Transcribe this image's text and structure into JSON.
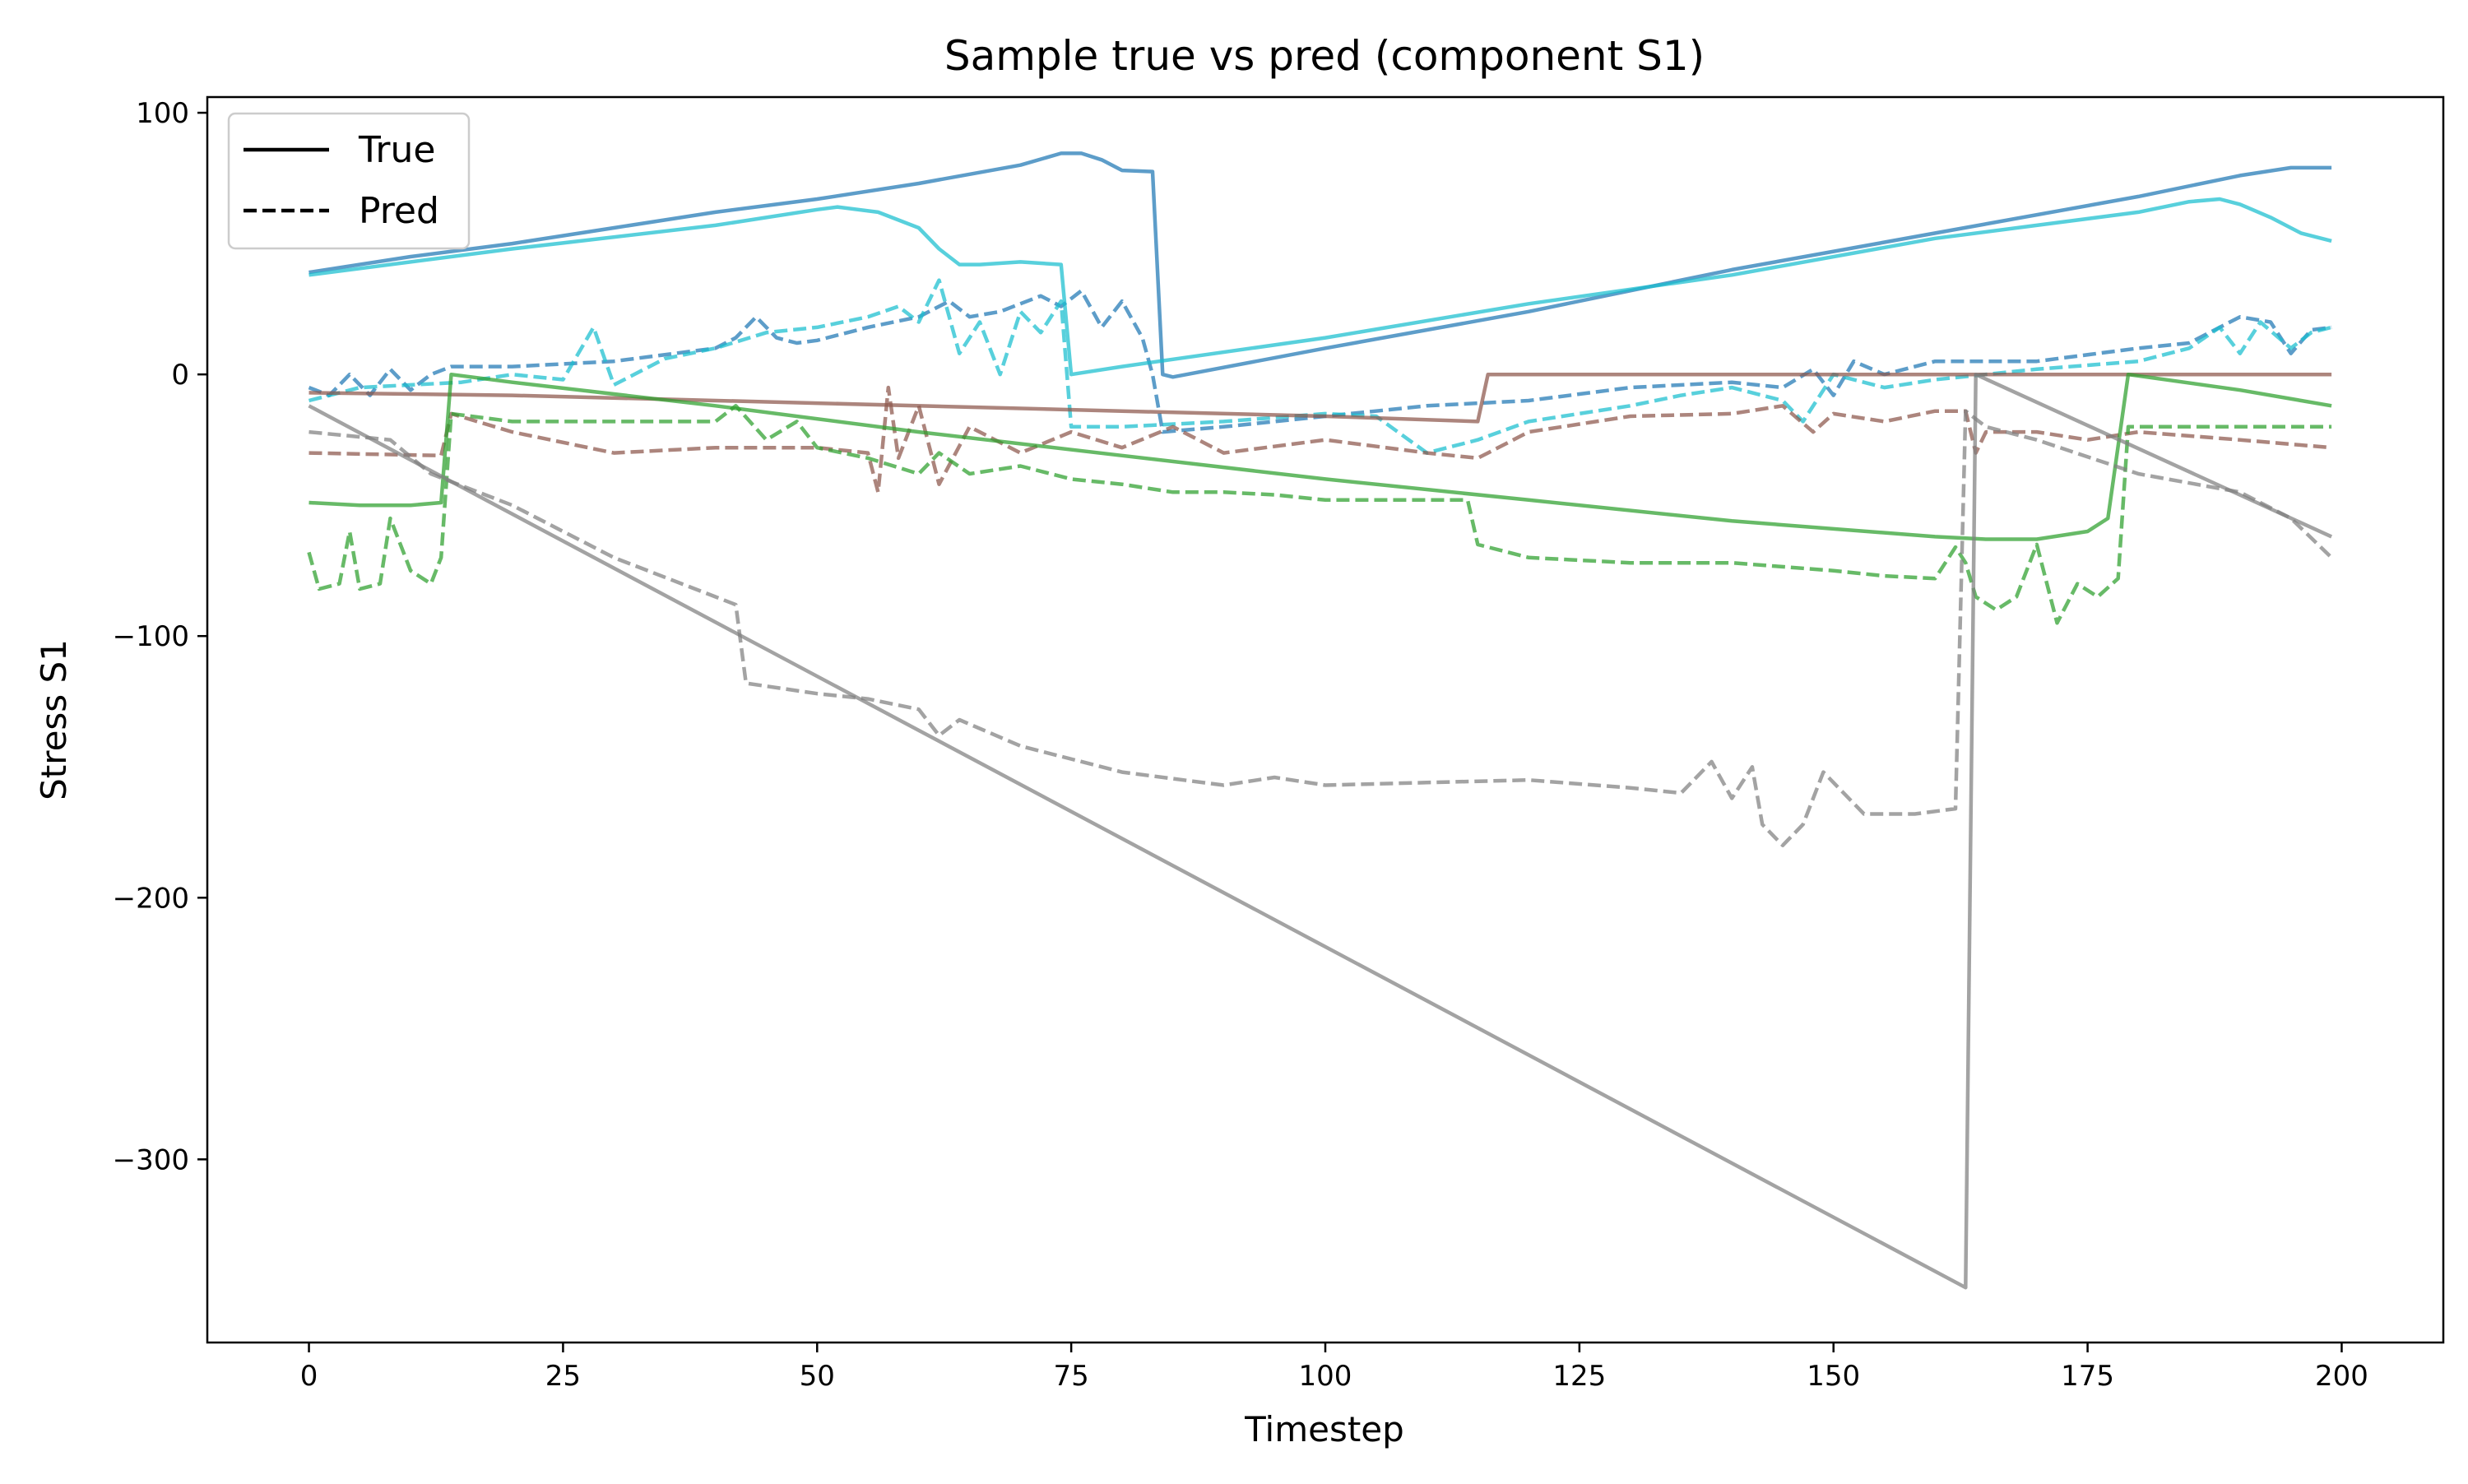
{
  "chart_data": {
    "type": "line",
    "title": "Sample true vs pred (component S1)",
    "xlabel": "Timestep",
    "ylabel": "Stress S1",
    "xlim": [
      -10,
      210
    ],
    "ylim": [
      -370,
      106
    ],
    "x_ticks": [
      0,
      25,
      50,
      75,
      100,
      125,
      150,
      175,
      200
    ],
    "y_ticks": [
      100,
      0,
      -100,
      -200,
      -300
    ],
    "y_tick_labels": [
      "100",
      "0",
      "−100",
      "−200",
      "−300"
    ],
    "grid": false,
    "legend": {
      "placement": "top-left",
      "entries": [
        {
          "label": "True",
          "linestyle": "solid"
        },
        {
          "label": "Pred",
          "linestyle": "dashed"
        }
      ]
    },
    "series": [
      {
        "role": "true",
        "color": "#1f77b4",
        "linestyle": "solid",
        "points": [
          [
            0,
            39
          ],
          [
            10,
            45
          ],
          [
            20,
            50
          ],
          [
            30,
            56
          ],
          [
            40,
            62
          ],
          [
            50,
            67
          ],
          [
            60,
            73
          ],
          [
            70,
            80
          ],
          [
            74,
            84.5
          ],
          [
            76,
            84.5
          ],
          [
            78,
            82
          ],
          [
            80,
            78
          ],
          [
            83,
            77.5
          ],
          [
            84,
            0
          ],
          [
            85,
            -1
          ],
          [
            100,
            10
          ],
          [
            120,
            24
          ],
          [
            140,
            40
          ],
          [
            160,
            54
          ],
          [
            180,
            68
          ],
          [
            190,
            76
          ],
          [
            195,
            79
          ],
          [
            199,
            79
          ]
        ]
      },
      {
        "role": "pred",
        "color": "#1f77b4",
        "linestyle": "dashed",
        "points": [
          [
            0,
            -5
          ],
          [
            2,
            -8
          ],
          [
            4,
            0
          ],
          [
            6,
            -8
          ],
          [
            8,
            2
          ],
          [
            10,
            -6
          ],
          [
            12,
            0
          ],
          [
            14,
            3
          ],
          [
            20,
            3
          ],
          [
            30,
            5
          ],
          [
            40,
            10
          ],
          [
            42,
            14
          ],
          [
            44,
            22
          ],
          [
            46,
            14
          ],
          [
            48,
            12
          ],
          [
            50,
            13
          ],
          [
            55,
            18
          ],
          [
            60,
            22
          ],
          [
            63,
            28
          ],
          [
            65,
            22
          ],
          [
            68,
            24
          ],
          [
            72,
            30
          ],
          [
            74,
            26
          ],
          [
            76,
            32
          ],
          [
            78,
            18
          ],
          [
            80,
            28
          ],
          [
            82,
            14
          ],
          [
            83,
            0
          ],
          [
            84,
            -22
          ],
          [
            90,
            -20
          ],
          [
            95,
            -18
          ],
          [
            100,
            -16
          ],
          [
            110,
            -12
          ],
          [
            120,
            -10
          ],
          [
            130,
            -5
          ],
          [
            140,
            -3
          ],
          [
            145,
            -5
          ],
          [
            148,
            2
          ],
          [
            150,
            -8
          ],
          [
            152,
            5
          ],
          [
            155,
            0
          ],
          [
            160,
            5
          ],
          [
            170,
            5
          ],
          [
            180,
            10
          ],
          [
            185,
            12
          ],
          [
            190,
            22
          ],
          [
            193,
            20
          ],
          [
            195,
            8
          ],
          [
            197,
            17
          ],
          [
            199,
            18
          ]
        ]
      },
      {
        "role": "true",
        "color": "#17becf",
        "linestyle": "solid",
        "points": [
          [
            0,
            38
          ],
          [
            20,
            48
          ],
          [
            40,
            57
          ],
          [
            50,
            63
          ],
          [
            52,
            64
          ],
          [
            56,
            62
          ],
          [
            60,
            56
          ],
          [
            62,
            48
          ],
          [
            64,
            42
          ],
          [
            66,
            42
          ],
          [
            70,
            43
          ],
          [
            74,
            42
          ],
          [
            75,
            0
          ],
          [
            80,
            3
          ],
          [
            100,
            14
          ],
          [
            120,
            27
          ],
          [
            140,
            38
          ],
          [
            160,
            52
          ],
          [
            180,
            62
          ],
          [
            185,
            66
          ],
          [
            188,
            67
          ],
          [
            190,
            65
          ],
          [
            193,
            60
          ],
          [
            196,
            54
          ],
          [
            199,
            51
          ]
        ]
      },
      {
        "role": "pred",
        "color": "#17becf",
        "linestyle": "dashed",
        "points": [
          [
            0,
            -10
          ],
          [
            5,
            -5
          ],
          [
            10,
            -4
          ],
          [
            15,
            -3
          ],
          [
            20,
            0
          ],
          [
            25,
            -2
          ],
          [
            28,
            18
          ],
          [
            30,
            -4
          ],
          [
            35,
            6
          ],
          [
            40,
            10
          ],
          [
            45,
            16
          ],
          [
            50,
            18
          ],
          [
            55,
            22
          ],
          [
            58,
            26
          ],
          [
            60,
            20
          ],
          [
            62,
            36
          ],
          [
            64,
            8
          ],
          [
            66,
            20
          ],
          [
            68,
            0
          ],
          [
            70,
            24
          ],
          [
            72,
            16
          ],
          [
            74,
            28
          ],
          [
            75,
            -20
          ],
          [
            80,
            -20
          ],
          [
            90,
            -18
          ],
          [
            100,
            -15
          ],
          [
            105,
            -16
          ],
          [
            110,
            -30
          ],
          [
            115,
            -25
          ],
          [
            120,
            -18
          ],
          [
            130,
            -12
          ],
          [
            135,
            -8
          ],
          [
            140,
            -5
          ],
          [
            145,
            -10
          ],
          [
            147,
            -18
          ],
          [
            150,
            0
          ],
          [
            155,
            -5
          ],
          [
            160,
            -2
          ],
          [
            170,
            2
          ],
          [
            180,
            5
          ],
          [
            185,
            10
          ],
          [
            188,
            18
          ],
          [
            190,
            8
          ],
          [
            192,
            20
          ],
          [
            195,
            10
          ],
          [
            197,
            16
          ],
          [
            199,
            18
          ]
        ]
      },
      {
        "role": "true",
        "color": "#8c564b",
        "linestyle": "solid",
        "points": [
          [
            0,
            -7
          ],
          [
            20,
            -8
          ],
          [
            50,
            -11
          ],
          [
            80,
            -14
          ],
          [
            100,
            -16
          ],
          [
            115,
            -18
          ],
          [
            116,
            0
          ],
          [
            199,
            0
          ]
        ]
      },
      {
        "role": "pred",
        "color": "#8c564b",
        "linestyle": "dashed",
        "points": [
          [
            0,
            -30
          ],
          [
            13,
            -31
          ],
          [
            14,
            -15
          ],
          [
            20,
            -22
          ],
          [
            30,
            -30
          ],
          [
            40,
            -28
          ],
          [
            50,
            -28
          ],
          [
            55,
            -30
          ],
          [
            56,
            -45
          ],
          [
            57,
            -5
          ],
          [
            58,
            -32
          ],
          [
            60,
            -12
          ],
          [
            62,
            -42
          ],
          [
            65,
            -20
          ],
          [
            70,
            -30
          ],
          [
            75,
            -22
          ],
          [
            80,
            -28
          ],
          [
            85,
            -20
          ],
          [
            90,
            -30
          ],
          [
            100,
            -25
          ],
          [
            110,
            -30
          ],
          [
            115,
            -32
          ],
          [
            116,
            -30
          ],
          [
            120,
            -22
          ],
          [
            130,
            -16
          ],
          [
            140,
            -15
          ],
          [
            145,
            -12
          ],
          [
            148,
            -22
          ],
          [
            150,
            -15
          ],
          [
            155,
            -18
          ],
          [
            160,
            -14
          ],
          [
            163,
            -14
          ],
          [
            164,
            -30
          ],
          [
            165,
            -22
          ],
          [
            170,
            -22
          ],
          [
            175,
            -25
          ],
          [
            180,
            -22
          ],
          [
            190,
            -25
          ],
          [
            199,
            -28
          ]
        ]
      },
      {
        "role": "true",
        "color": "#2ca02c",
        "linestyle": "solid",
        "points": [
          [
            0,
            -49
          ],
          [
            5,
            -50
          ],
          [
            10,
            -50
          ],
          [
            13,
            -49
          ],
          [
            14,
            0
          ],
          [
            20,
            -3
          ],
          [
            40,
            -12
          ],
          [
            60,
            -22
          ],
          [
            80,
            -31
          ],
          [
            100,
            -40
          ],
          [
            120,
            -48
          ],
          [
            140,
            -56
          ],
          [
            160,
            -62
          ],
          [
            165,
            -63
          ],
          [
            170,
            -63
          ],
          [
            175,
            -60
          ],
          [
            177,
            -55
          ],
          [
            179,
            0
          ],
          [
            190,
            -6
          ],
          [
            199,
            -12
          ]
        ]
      },
      {
        "role": "pred",
        "color": "#2ca02c",
        "linestyle": "dashed",
        "points": [
          [
            0,
            -68
          ],
          [
            1,
            -82
          ],
          [
            3,
            -80
          ],
          [
            4,
            -60
          ],
          [
            5,
            -82
          ],
          [
            7,
            -80
          ],
          [
            8,
            -55
          ],
          [
            10,
            -75
          ],
          [
            12,
            -80
          ],
          [
            13,
            -70
          ],
          [
            14,
            -15
          ],
          [
            20,
            -18
          ],
          [
            30,
            -18
          ],
          [
            40,
            -18
          ],
          [
            42,
            -12
          ],
          [
            45,
            -25
          ],
          [
            48,
            -18
          ],
          [
            50,
            -28
          ],
          [
            55,
            -32
          ],
          [
            60,
            -38
          ],
          [
            62,
            -30
          ],
          [
            65,
            -38
          ],
          [
            70,
            -35
          ],
          [
            75,
            -40
          ],
          [
            80,
            -42
          ],
          [
            85,
            -45
          ],
          [
            90,
            -45
          ],
          [
            95,
            -46
          ],
          [
            100,
            -48
          ],
          [
            110,
            -48
          ],
          [
            114,
            -48
          ],
          [
            115,
            -65
          ],
          [
            120,
            -70
          ],
          [
            130,
            -72
          ],
          [
            140,
            -72
          ],
          [
            150,
            -75
          ],
          [
            155,
            -77
          ],
          [
            160,
            -78
          ],
          [
            162,
            -66
          ],
          [
            163,
            -72
          ],
          [
            164,
            -85
          ],
          [
            166,
            -90
          ],
          [
            168,
            -85
          ],
          [
            170,
            -65
          ],
          [
            172,
            -95
          ],
          [
            174,
            -80
          ],
          [
            176,
            -85
          ],
          [
            178,
            -78
          ],
          [
            179,
            -20
          ],
          [
            185,
            -20
          ],
          [
            190,
            -20
          ],
          [
            199,
            -20
          ]
        ]
      },
      {
        "role": "true",
        "color": "#7f7f7f",
        "linestyle": "solid",
        "points": [
          [
            0,
            -12
          ],
          [
            163,
            -349
          ],
          [
            164,
            0
          ],
          [
            199,
            -62
          ]
        ]
      },
      {
        "role": "pred",
        "color": "#7f7f7f",
        "linestyle": "dashed",
        "points": [
          [
            0,
            -22
          ],
          [
            8,
            -25
          ],
          [
            12,
            -38
          ],
          [
            20,
            -50
          ],
          [
            30,
            -70
          ],
          [
            40,
            -85
          ],
          [
            42,
            -88
          ],
          [
            43,
            -118
          ],
          [
            50,
            -122
          ],
          [
            55,
            -124
          ],
          [
            60,
            -128
          ],
          [
            62,
            -138
          ],
          [
            64,
            -132
          ],
          [
            70,
            -142
          ],
          [
            80,
            -152
          ],
          [
            90,
            -157
          ],
          [
            95,
            -154
          ],
          [
            100,
            -157
          ],
          [
            110,
            -156
          ],
          [
            120,
            -155
          ],
          [
            130,
            -158
          ],
          [
            135,
            -160
          ],
          [
            138,
            -148
          ],
          [
            140,
            -162
          ],
          [
            142,
            -150
          ],
          [
            143,
            -172
          ],
          [
            145,
            -180
          ],
          [
            147,
            -172
          ],
          [
            149,
            -152
          ],
          [
            151,
            -160
          ],
          [
            153,
            -168
          ],
          [
            158,
            -168
          ],
          [
            162,
            -166
          ],
          [
            163,
            -14
          ],
          [
            165,
            -20
          ],
          [
            170,
            -25
          ],
          [
            180,
            -38
          ],
          [
            190,
            -45
          ],
          [
            195,
            -55
          ],
          [
            199,
            -70
          ]
        ]
      }
    ]
  }
}
